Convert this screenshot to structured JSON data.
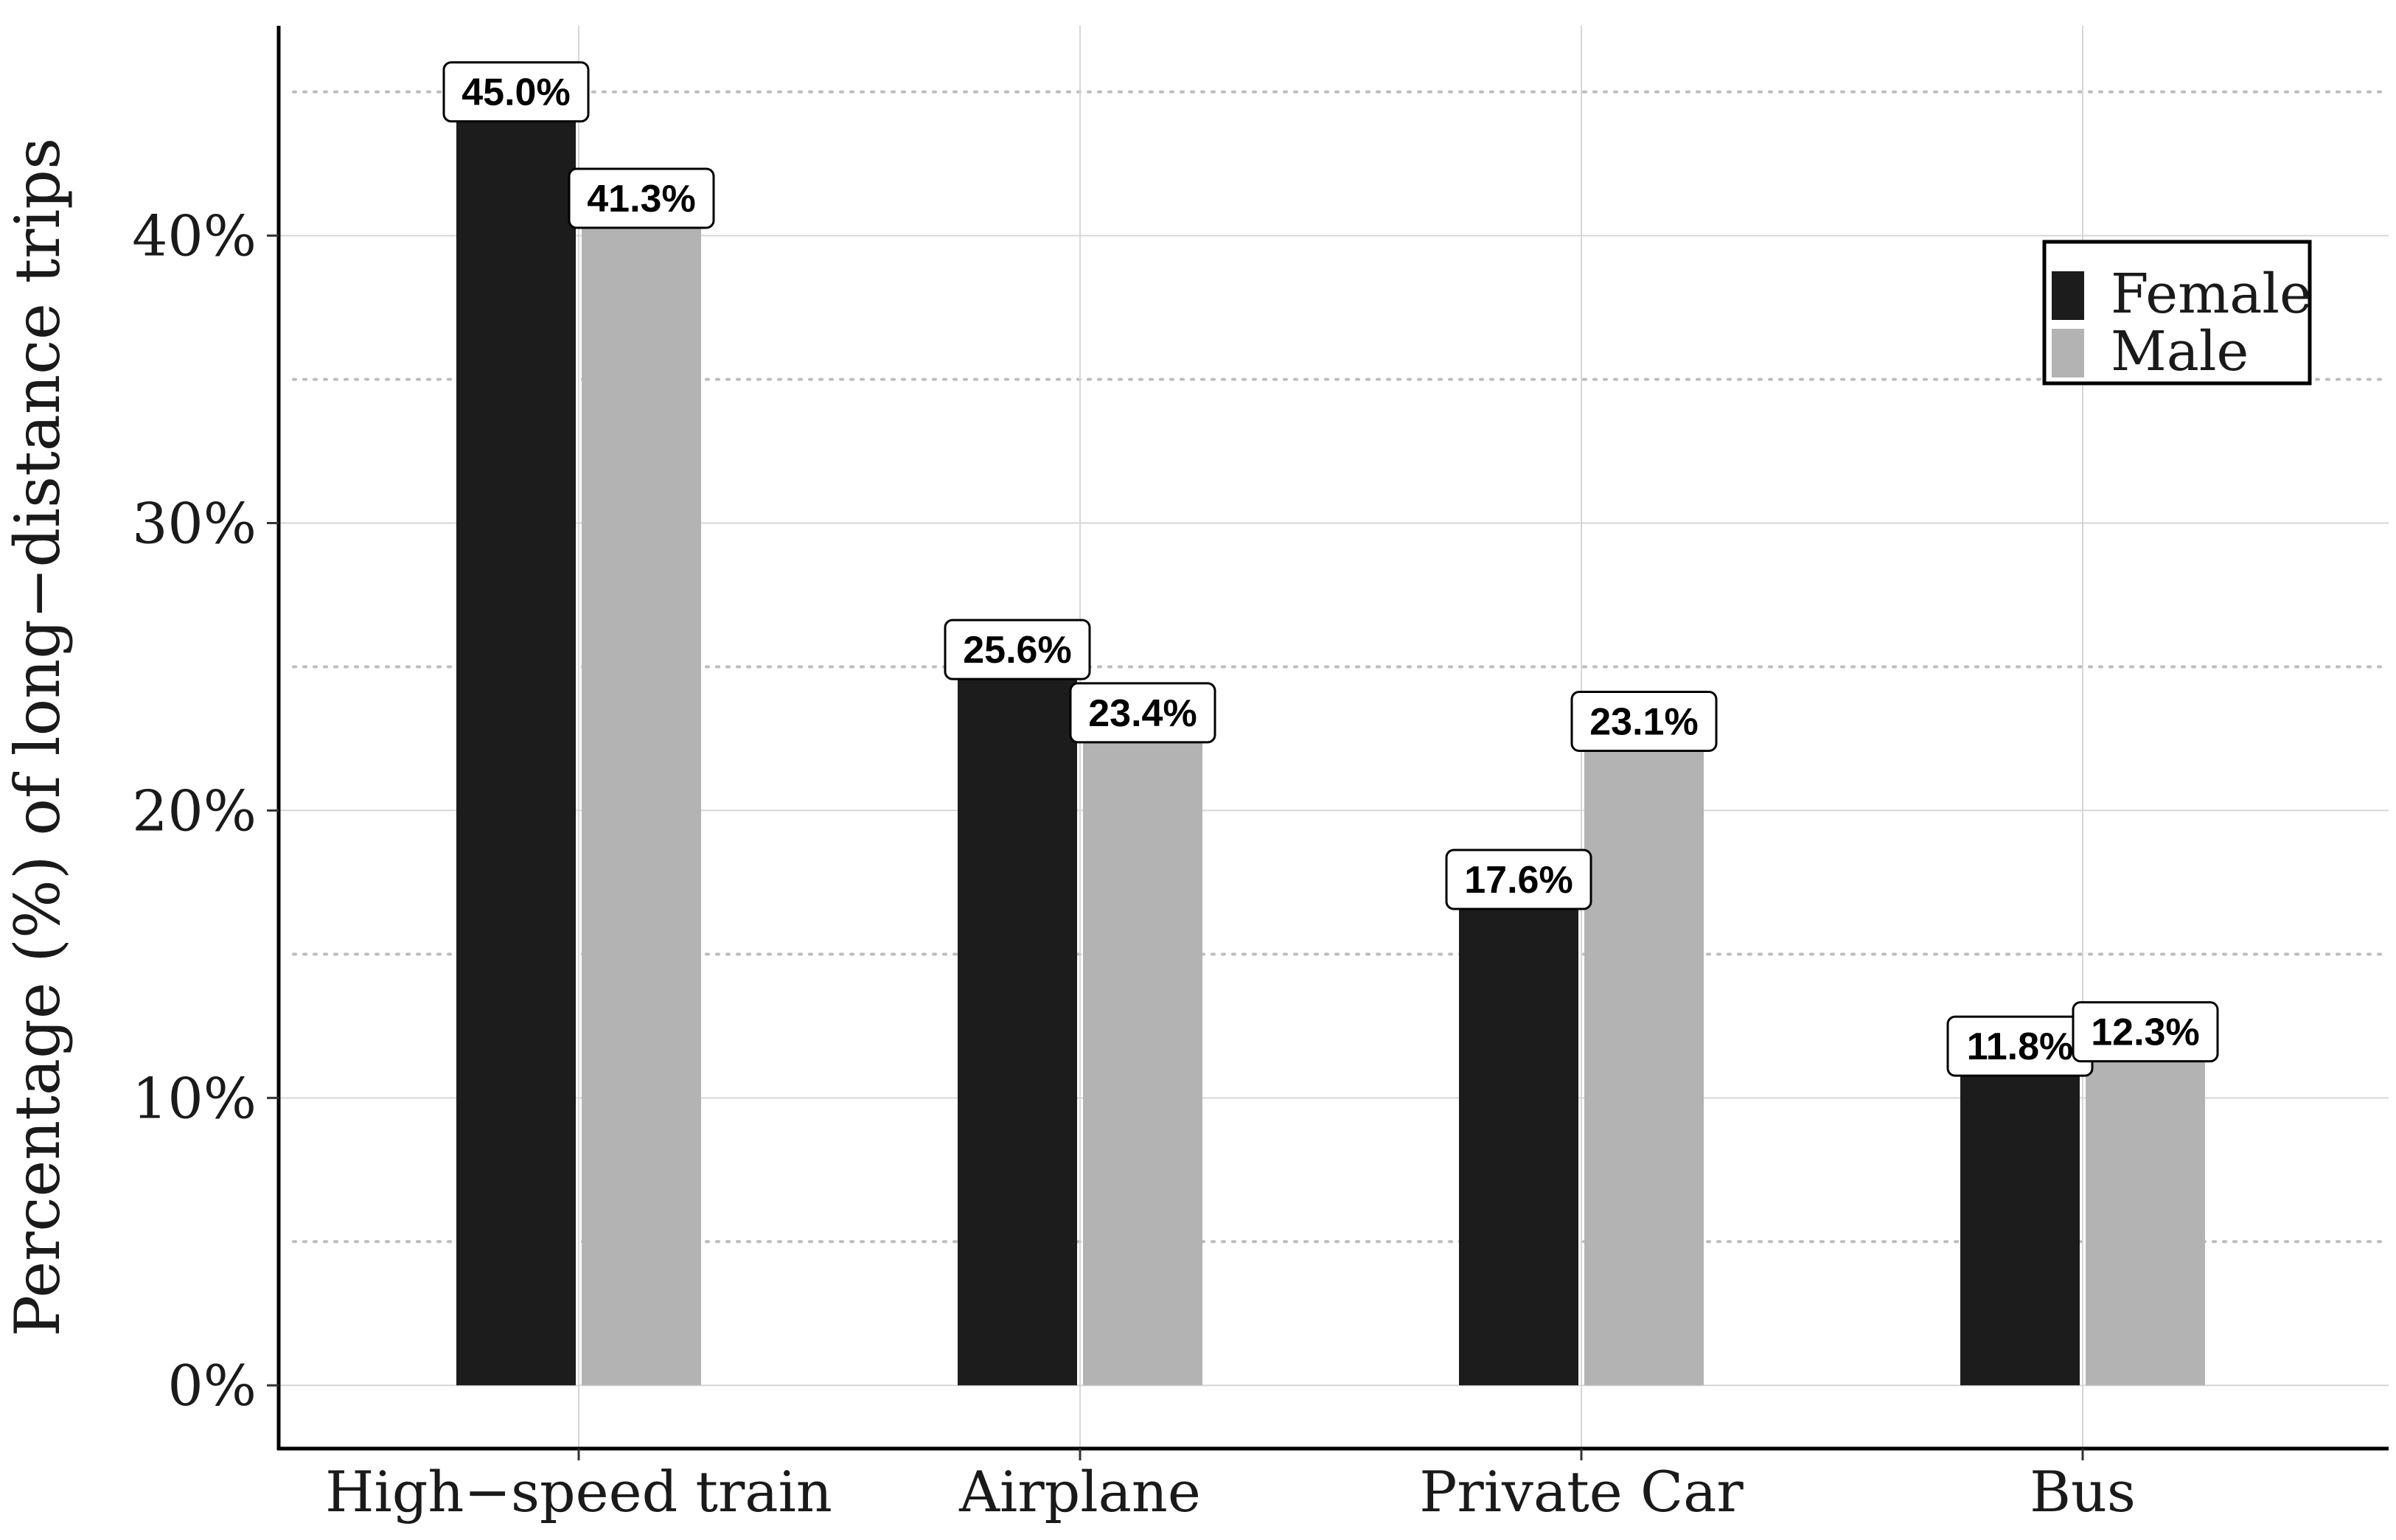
{
  "chart_data": {
    "type": "bar",
    "title": "",
    "xlabel": "",
    "ylabel": "Percentage (%) of long−distance trips",
    "categories": [
      "High−speed train",
      "Airplane",
      "Private Car",
      "Bus"
    ],
    "series": [
      {
        "name": "Female",
        "color": "#1c1c1c",
        "values": [
          45.0,
          25.6,
          17.6,
          11.8
        ],
        "labels": [
          "45.0%",
          "25.6%",
          "17.6%",
          "11.8%"
        ]
      },
      {
        "name": "Male",
        "color": "#b3b3b3",
        "values": [
          41.3,
          23.4,
          23.1,
          12.3
        ],
        "labels": [
          "41.3%",
          "23.4%",
          "23.1%",
          "12.3%"
        ]
      }
    ],
    "ylim": [
      -2.2,
      47.3
    ],
    "yticks": [
      0,
      10,
      20,
      30,
      40
    ],
    "ytick_labels": [
      "0%",
      "10%",
      "20%",
      "30%",
      "40%"
    ],
    "minor_gridlines": [
      5,
      15,
      25,
      35,
      45
    ],
    "grid": true,
    "legend_position": "top-right"
  }
}
